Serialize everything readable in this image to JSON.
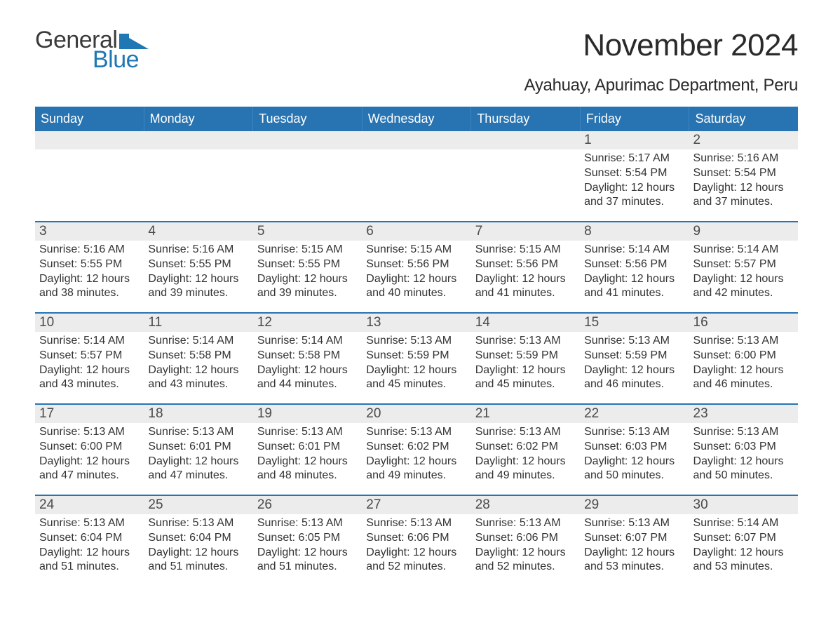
{
  "brand": {
    "part1": "General",
    "part2": "Blue"
  },
  "title": "November 2024",
  "subtitle": "Ayahuay, Apurimac Department, Peru",
  "colors": {
    "header_bg": "#2874b2",
    "header_text": "#ffffff",
    "daynum_bg": "#ececec",
    "row_divider": "#2874b2",
    "text": "#333333",
    "logo_blue": "#1f77b4"
  },
  "fonts": {
    "title_size": 44,
    "subtitle_size": 24,
    "header_size": 18,
    "daynum_size": 19,
    "body_size": 16
  },
  "day_headers": [
    "Sunday",
    "Monday",
    "Tuesday",
    "Wednesday",
    "Thursday",
    "Friday",
    "Saturday"
  ],
  "weeks": [
    [
      null,
      null,
      null,
      null,
      null,
      {
        "n": "1",
        "sunrise": "Sunrise: 5:17 AM",
        "sunset": "Sunset: 5:54 PM",
        "day1": "Daylight: 12 hours",
        "day2": "and 37 minutes."
      },
      {
        "n": "2",
        "sunrise": "Sunrise: 5:16 AM",
        "sunset": "Sunset: 5:54 PM",
        "day1": "Daylight: 12 hours",
        "day2": "and 37 minutes."
      }
    ],
    [
      {
        "n": "3",
        "sunrise": "Sunrise: 5:16 AM",
        "sunset": "Sunset: 5:55 PM",
        "day1": "Daylight: 12 hours",
        "day2": "and 38 minutes."
      },
      {
        "n": "4",
        "sunrise": "Sunrise: 5:16 AM",
        "sunset": "Sunset: 5:55 PM",
        "day1": "Daylight: 12 hours",
        "day2": "and 39 minutes."
      },
      {
        "n": "5",
        "sunrise": "Sunrise: 5:15 AM",
        "sunset": "Sunset: 5:55 PM",
        "day1": "Daylight: 12 hours",
        "day2": "and 39 minutes."
      },
      {
        "n": "6",
        "sunrise": "Sunrise: 5:15 AM",
        "sunset": "Sunset: 5:56 PM",
        "day1": "Daylight: 12 hours",
        "day2": "and 40 minutes."
      },
      {
        "n": "7",
        "sunrise": "Sunrise: 5:15 AM",
        "sunset": "Sunset: 5:56 PM",
        "day1": "Daylight: 12 hours",
        "day2": "and 41 minutes."
      },
      {
        "n": "8",
        "sunrise": "Sunrise: 5:14 AM",
        "sunset": "Sunset: 5:56 PM",
        "day1": "Daylight: 12 hours",
        "day2": "and 41 minutes."
      },
      {
        "n": "9",
        "sunrise": "Sunrise: 5:14 AM",
        "sunset": "Sunset: 5:57 PM",
        "day1": "Daylight: 12 hours",
        "day2": "and 42 minutes."
      }
    ],
    [
      {
        "n": "10",
        "sunrise": "Sunrise: 5:14 AM",
        "sunset": "Sunset: 5:57 PM",
        "day1": "Daylight: 12 hours",
        "day2": "and 43 minutes."
      },
      {
        "n": "11",
        "sunrise": "Sunrise: 5:14 AM",
        "sunset": "Sunset: 5:58 PM",
        "day1": "Daylight: 12 hours",
        "day2": "and 43 minutes."
      },
      {
        "n": "12",
        "sunrise": "Sunrise: 5:14 AM",
        "sunset": "Sunset: 5:58 PM",
        "day1": "Daylight: 12 hours",
        "day2": "and 44 minutes."
      },
      {
        "n": "13",
        "sunrise": "Sunrise: 5:13 AM",
        "sunset": "Sunset: 5:59 PM",
        "day1": "Daylight: 12 hours",
        "day2": "and 45 minutes."
      },
      {
        "n": "14",
        "sunrise": "Sunrise: 5:13 AM",
        "sunset": "Sunset: 5:59 PM",
        "day1": "Daylight: 12 hours",
        "day2": "and 45 minutes."
      },
      {
        "n": "15",
        "sunrise": "Sunrise: 5:13 AM",
        "sunset": "Sunset: 5:59 PM",
        "day1": "Daylight: 12 hours",
        "day2": "and 46 minutes."
      },
      {
        "n": "16",
        "sunrise": "Sunrise: 5:13 AM",
        "sunset": "Sunset: 6:00 PM",
        "day1": "Daylight: 12 hours",
        "day2": "and 46 minutes."
      }
    ],
    [
      {
        "n": "17",
        "sunrise": "Sunrise: 5:13 AM",
        "sunset": "Sunset: 6:00 PM",
        "day1": "Daylight: 12 hours",
        "day2": "and 47 minutes."
      },
      {
        "n": "18",
        "sunrise": "Sunrise: 5:13 AM",
        "sunset": "Sunset: 6:01 PM",
        "day1": "Daylight: 12 hours",
        "day2": "and 47 minutes."
      },
      {
        "n": "19",
        "sunrise": "Sunrise: 5:13 AM",
        "sunset": "Sunset: 6:01 PM",
        "day1": "Daylight: 12 hours",
        "day2": "and 48 minutes."
      },
      {
        "n": "20",
        "sunrise": "Sunrise: 5:13 AM",
        "sunset": "Sunset: 6:02 PM",
        "day1": "Daylight: 12 hours",
        "day2": "and 49 minutes."
      },
      {
        "n": "21",
        "sunrise": "Sunrise: 5:13 AM",
        "sunset": "Sunset: 6:02 PM",
        "day1": "Daylight: 12 hours",
        "day2": "and 49 minutes."
      },
      {
        "n": "22",
        "sunrise": "Sunrise: 5:13 AM",
        "sunset": "Sunset: 6:03 PM",
        "day1": "Daylight: 12 hours",
        "day2": "and 50 minutes."
      },
      {
        "n": "23",
        "sunrise": "Sunrise: 5:13 AM",
        "sunset": "Sunset: 6:03 PM",
        "day1": "Daylight: 12 hours",
        "day2": "and 50 minutes."
      }
    ],
    [
      {
        "n": "24",
        "sunrise": "Sunrise: 5:13 AM",
        "sunset": "Sunset: 6:04 PM",
        "day1": "Daylight: 12 hours",
        "day2": "and 51 minutes."
      },
      {
        "n": "25",
        "sunrise": "Sunrise: 5:13 AM",
        "sunset": "Sunset: 6:04 PM",
        "day1": "Daylight: 12 hours",
        "day2": "and 51 minutes."
      },
      {
        "n": "26",
        "sunrise": "Sunrise: 5:13 AM",
        "sunset": "Sunset: 6:05 PM",
        "day1": "Daylight: 12 hours",
        "day2": "and 51 minutes."
      },
      {
        "n": "27",
        "sunrise": "Sunrise: 5:13 AM",
        "sunset": "Sunset: 6:06 PM",
        "day1": "Daylight: 12 hours",
        "day2": "and 52 minutes."
      },
      {
        "n": "28",
        "sunrise": "Sunrise: 5:13 AM",
        "sunset": "Sunset: 6:06 PM",
        "day1": "Daylight: 12 hours",
        "day2": "and 52 minutes."
      },
      {
        "n": "29",
        "sunrise": "Sunrise: 5:13 AM",
        "sunset": "Sunset: 6:07 PM",
        "day1": "Daylight: 12 hours",
        "day2": "and 53 minutes."
      },
      {
        "n": "30",
        "sunrise": "Sunrise: 5:14 AM",
        "sunset": "Sunset: 6:07 PM",
        "day1": "Daylight: 12 hours",
        "day2": "and 53 minutes."
      }
    ]
  ]
}
